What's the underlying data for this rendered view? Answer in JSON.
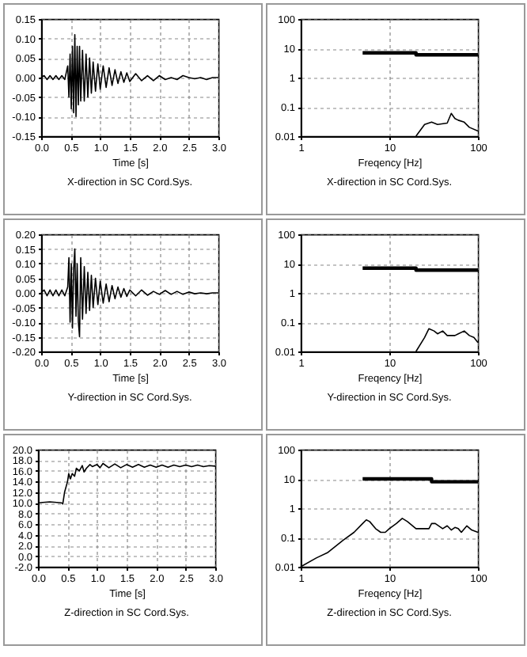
{
  "chart_data": [
    {
      "type": "line",
      "title": "X-direction in SC Cord.Sys.",
      "xlabel": "Time [s]",
      "grid": true,
      "xlim": [
        0,
        3
      ],
      "xticks": [
        {
          "value": 0,
          "label": "0.0"
        },
        {
          "value": 0.5,
          "label": "0.5"
        },
        {
          "value": 1,
          "label": "1.0"
        },
        {
          "value": 1.5,
          "label": "1.5"
        },
        {
          "value": 2,
          "label": "2.0"
        },
        {
          "value": 2.5,
          "label": "2.5"
        },
        {
          "value": 3,
          "label": "3.0"
        }
      ],
      "ylim": [
        -0.15,
        0.15
      ],
      "yticks": [
        {
          "value": -0.15,
          "label": "-0.15"
        },
        {
          "value": -0.1,
          "label": "-0.10"
        },
        {
          "value": -0.05,
          "label": "-0.05"
        },
        {
          "value": 0,
          "label": "0.00"
        },
        {
          "value": 0.05,
          "label": "0.05"
        },
        {
          "value": 0.1,
          "label": "0.10"
        },
        {
          "value": 0.15,
          "label": "0.15"
        }
      ],
      "series": [
        {
          "color": "#000000",
          "x": [
            0,
            0.05,
            0.1,
            0.15,
            0.2,
            0.25,
            0.3,
            0.35,
            0.4,
            0.45,
            0.47,
            0.49,
            0.51,
            0.53,
            0.55,
            0.57,
            0.59,
            0.61,
            0.63,
            0.65,
            0.67,
            0.7,
            0.73,
            0.76,
            0.79,
            0.82,
            0.85,
            0.88,
            0.92,
            0.96,
            1.0,
            1.05,
            1.1,
            1.15,
            1.2,
            1.25,
            1.3,
            1.35,
            1.4,
            1.45,
            1.5,
            1.6,
            1.7,
            1.8,
            1.9,
            2.0,
            2.1,
            2.2,
            2.3,
            2.4,
            2.5,
            2.6,
            2.7,
            2.8,
            2.9,
            3.0
          ],
          "values": [
            0,
            0.005,
            -0.005,
            0.005,
            -0.005,
            0.005,
            -0.005,
            0.005,
            -0.005,
            0.03,
            -0.05,
            0.06,
            -0.08,
            0.08,
            -0.09,
            0.11,
            -0.1,
            0.08,
            -0.07,
            0.08,
            -0.06,
            0.07,
            -0.06,
            0.06,
            -0.05,
            0.05,
            -0.04,
            0.04,
            -0.035,
            0.035,
            -0.03,
            0.03,
            -0.025,
            0.025,
            -0.02,
            0.02,
            -0.015,
            0.015,
            -0.012,
            0.012,
            -0.01,
            0.01,
            -0.008,
            0.005,
            -0.008,
            0.005,
            -0.005,
            0,
            -0.005,
            0.005,
            0,
            -0.003,
            0,
            -0.005,
            0,
            0
          ]
        }
      ]
    },
    {
      "type": "line",
      "title": "X-direction in SC Cord.Sys.",
      "xlabel": "Freqency [Hz]",
      "grid": true,
      "log": "xy",
      "xlim": [
        1,
        100
      ],
      "xticks": [
        1,
        10,
        100
      ],
      "ylim": [
        0.01,
        100
      ],
      "yticks": [
        0.01,
        0.1,
        1,
        10,
        100
      ],
      "series": [
        {
          "color": "#000000",
          "x": [
            5,
            20,
            20,
            100
          ],
          "values": [
            7,
            7,
            6,
            6
          ]
        },
        {
          "color": "#000000",
          "x": [
            20,
            25,
            30,
            35,
            45,
            50,
            55,
            60,
            70,
            80,
            100
          ],
          "values": [
            0.01,
            0.025,
            0.03,
            0.025,
            0.028,
            0.06,
            0.04,
            0.035,
            0.03,
            0.02,
            0.015
          ]
        }
      ]
    },
    {
      "type": "line",
      "title": "Y-direction in SC Cord.Sys.",
      "xlabel": "Time [s]",
      "grid": true,
      "xlim": [
        0,
        3
      ],
      "xticks": [
        {
          "value": 0,
          "label": "0.0"
        },
        {
          "value": 0.5,
          "label": "0.5"
        },
        {
          "value": 1,
          "label": "1.0"
        },
        {
          "value": 1.5,
          "label": "1.5"
        },
        {
          "value": 2,
          "label": "2.0"
        },
        {
          "value": 2.5,
          "label": "2.5"
        },
        {
          "value": 3,
          "label": "3.0"
        }
      ],
      "ylim": [
        -0.2,
        0.2
      ],
      "yticks": [
        {
          "value": -0.2,
          "label": "-0.20"
        },
        {
          "value": -0.15,
          "label": "-0.15"
        },
        {
          "value": -0.1,
          "label": "-0.10"
        },
        {
          "value": -0.05,
          "label": "-0.05"
        },
        {
          "value": 0,
          "label": "0.00"
        },
        {
          "value": 0.05,
          "label": "0.05"
        },
        {
          "value": 0.1,
          "label": "0.10"
        },
        {
          "value": 0.15,
          "label": "0.15"
        },
        {
          "value": 0.2,
          "label": "0.20"
        }
      ],
      "series": [
        {
          "color": "#000000",
          "x": [
            0,
            0.05,
            0.1,
            0.15,
            0.2,
            0.25,
            0.3,
            0.35,
            0.4,
            0.45,
            0.47,
            0.49,
            0.51,
            0.53,
            0.55,
            0.57,
            0.59,
            0.61,
            0.63,
            0.65,
            0.67,
            0.7,
            0.73,
            0.76,
            0.79,
            0.82,
            0.85,
            0.88,
            0.92,
            0.96,
            1.0,
            1.05,
            1.1,
            1.15,
            1.2,
            1.25,
            1.3,
            1.35,
            1.4,
            1.45,
            1.5,
            1.6,
            1.7,
            1.8,
            1.9,
            2.0,
            2.1,
            2.2,
            2.3,
            2.4,
            2.5,
            2.6,
            2.7,
            2.8,
            2.9,
            3.0
          ],
          "values": [
            0,
            0.01,
            -0.01,
            0.01,
            -0.01,
            0.01,
            -0.01,
            0.01,
            -0.01,
            0.02,
            0.12,
            -0.1,
            0.1,
            -0.12,
            0.08,
            0.15,
            -0.08,
            0.1,
            -0.1,
            -0.15,
            0.12,
            -0.09,
            0.09,
            -0.07,
            0.07,
            -0.06,
            0.06,
            -0.05,
            0.05,
            -0.04,
            0.04,
            -0.035,
            0.03,
            -0.03,
            0.025,
            -0.02,
            0.02,
            -0.015,
            0.015,
            -0.012,
            0.01,
            -0.01,
            0.01,
            -0.008,
            0.005,
            -0.005,
            0.008,
            -0.005,
            0.005,
            -0.005,
            0.003,
            -0.003,
            0,
            -0.003,
            0,
            0
          ]
        }
      ]
    },
    {
      "type": "line",
      "title": "Y-direction in SC Cord.Sys.",
      "xlabel": "Freqency [Hz]",
      "grid": true,
      "log": "xy",
      "xlim": [
        1,
        100
      ],
      "xticks": [
        1,
        10,
        100
      ],
      "ylim": [
        0.01,
        100
      ],
      "yticks": [
        0.01,
        0.1,
        1,
        10,
        100
      ],
      "series": [
        {
          "color": "#000000",
          "x": [
            5,
            20,
            20,
            100
          ],
          "values": [
            7,
            7,
            6,
            6
          ]
        },
        {
          "color": "#000000",
          "x": [
            20,
            25,
            28,
            32,
            35,
            40,
            45,
            55,
            60,
            70,
            80,
            90,
            100
          ],
          "values": [
            0.01,
            0.03,
            0.06,
            0.05,
            0.04,
            0.05,
            0.035,
            0.035,
            0.04,
            0.05,
            0.035,
            0.03,
            0.02
          ]
        }
      ]
    },
    {
      "type": "line",
      "title": "Z-direction in SC Cord.Sys.",
      "xlabel": "Time [s]",
      "grid": true,
      "xlim": [
        0,
        3
      ],
      "xticks": [
        {
          "value": 0,
          "label": "0.0"
        },
        {
          "value": 0.5,
          "label": "0.5"
        },
        {
          "value": 1,
          "label": "1.0"
        },
        {
          "value": 1.5,
          "label": "1.5"
        },
        {
          "value": 2,
          "label": "2.0"
        },
        {
          "value": 2.5,
          "label": "2.5"
        },
        {
          "value": 3,
          "label": "3.0"
        }
      ],
      "ylim": [
        -2,
        20
      ],
      "yticks": [
        {
          "value": -2,
          "label": "-2.0"
        },
        {
          "value": 0,
          "label": "0.0"
        },
        {
          "value": 2,
          "label": "2.0"
        },
        {
          "value": 4,
          "label": "4.0"
        },
        {
          "value": 6,
          "label": "6.0"
        },
        {
          "value": 8,
          "label": "8.0"
        },
        {
          "value": 10,
          "label": "10.0"
        },
        {
          "value": 12,
          "label": "12.0"
        },
        {
          "value": 14,
          "label": "14.0"
        },
        {
          "value": 16,
          "label": "16.0"
        },
        {
          "value": 18,
          "label": "18.0"
        },
        {
          "value": 20,
          "label": "20.0"
        }
      ],
      "series": [
        {
          "color": "#000000",
          "x": [
            0,
            0.2,
            0.4,
            0.42,
            0.45,
            0.5,
            0.52,
            0.55,
            0.58,
            0.62,
            0.65,
            0.7,
            0.75,
            0.78,
            0.82,
            0.88,
            0.92,
            1.0,
            1.05,
            1.1,
            1.2,
            1.3,
            1.4,
            1.5,
            1.6,
            1.7,
            1.8,
            1.9,
            2.0,
            2.1,
            2.2,
            2.3,
            2.4,
            2.5,
            2.6,
            2.7,
            2.8,
            2.9,
            3.0
          ],
          "values": [
            10,
            10.2,
            10,
            9.8,
            12,
            14,
            15.5,
            14.5,
            15.5,
            15,
            16.5,
            16,
            17,
            15.8,
            16.5,
            17.2,
            16.8,
            17.2,
            16.6,
            17.4,
            16.6,
            17.3,
            16.6,
            17.2,
            16.7,
            17.2,
            16.7,
            17.1,
            16.7,
            17.1,
            16.7,
            17.1,
            16.8,
            17.1,
            16.8,
            17.1,
            16.8,
            17,
            16.9
          ]
        }
      ]
    },
    {
      "type": "line",
      "title": "Z-direction in SC Cord.Sys.",
      "xlabel": "Freqency [Hz]",
      "grid": true,
      "log": "xy",
      "xlim": [
        1,
        100
      ],
      "xticks": [
        1,
        10,
        100
      ],
      "ylim": [
        0.01,
        100
      ],
      "yticks": [
        0.01,
        0.1,
        1,
        10,
        100
      ],
      "series": [
        {
          "color": "#000000",
          "x": [
            5,
            30,
            30,
            100
          ],
          "values": [
            10,
            10,
            8,
            8
          ]
        },
        {
          "color": "#000000",
          "x": [
            1,
            1.5,
            2,
            3,
            4,
            5,
            5.5,
            6,
            7,
            8,
            9,
            10,
            12,
            14,
            16,
            20,
            28,
            30,
            33,
            40,
            45,
            50,
            55,
            60,
            65,
            75,
            85,
            100
          ],
          "values": [
            0.01,
            0.02,
            0.03,
            0.08,
            0.15,
            0.3,
            0.4,
            0.35,
            0.2,
            0.15,
            0.15,
            0.2,
            0.3,
            0.45,
            0.35,
            0.2,
            0.2,
            0.3,
            0.3,
            0.2,
            0.25,
            0.18,
            0.22,
            0.2,
            0.15,
            0.25,
            0.18,
            0.15
          ]
        }
      ]
    }
  ]
}
